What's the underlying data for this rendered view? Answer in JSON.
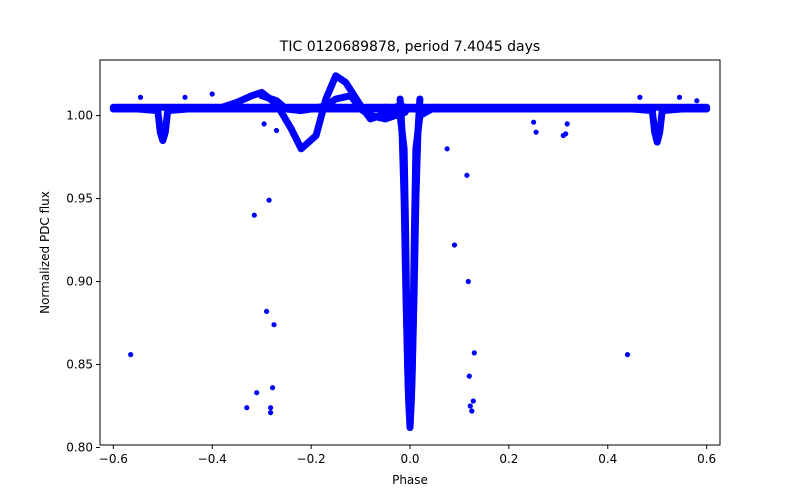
{
  "chart_data": {
    "type": "scatter",
    "title": "TIC 0120689878, period 7.4045 days",
    "xlabel": "Phase",
    "ylabel": "Normalized PDC flux",
    "xlim": [
      -0.627,
      0.627
    ],
    "ylim": [
      0.8015,
      1.0335
    ],
    "grid": false,
    "legend": "none",
    "color": "#0000ff",
    "x_ticks": [
      {
        "value": -0.6,
        "label": "−0.6"
      },
      {
        "value": -0.4,
        "label": "−0.4"
      },
      {
        "value": -0.2,
        "label": "−0.2"
      },
      {
        "value": 0.0,
        "label": "0.0"
      },
      {
        "value": 0.2,
        "label": "0.2"
      },
      {
        "value": 0.4,
        "label": "0.4"
      },
      {
        "value": 0.6,
        "label": "0.6"
      }
    ],
    "y_ticks": [
      {
        "value": 0.8,
        "label": "0.80"
      },
      {
        "value": 0.85,
        "label": "0.85"
      },
      {
        "value": 0.9,
        "label": "0.90"
      },
      {
        "value": 0.95,
        "label": "0.95"
      },
      {
        "value": 1.0,
        "label": "1.00"
      }
    ],
    "series_curves": [
      {
        "x": [
          -0.6,
          -0.55,
          -0.5,
          -0.45,
          -0.4,
          -0.35,
          -0.3,
          -0.25,
          -0.2,
          -0.15,
          -0.1,
          -0.05,
          -0.02,
          -0.015,
          -0.01,
          -0.008,
          -0.005,
          -0.003,
          0.0,
          0.003,
          0.005,
          0.008,
          0.01,
          0.015,
          0.02,
          0.05,
          0.1,
          0.15,
          0.2,
          0.25,
          0.3,
          0.35,
          0.4,
          0.45,
          0.5,
          0.55,
          0.6
        ],
        "y": [
          1.005,
          1.005,
          1.005,
          1.005,
          1.005,
          1.005,
          1.005,
          1.005,
          1.005,
          1.005,
          1.005,
          1.005,
          1.005,
          1.005,
          1.005,
          1.005,
          1.005,
          1.005,
          1.005,
          1.005,
          1.005,
          1.005,
          1.005,
          1.005,
          1.005,
          1.005,
          1.005,
          1.005,
          1.005,
          1.005,
          1.005,
          1.005,
          1.005,
          1.005,
          1.005,
          1.005,
          1.005
        ]
      },
      {
        "x": [
          -0.6,
          -0.55,
          -0.51,
          -0.505,
          -0.5,
          -0.495,
          -0.49,
          -0.45,
          -0.4,
          -0.35,
          -0.3,
          -0.25,
          -0.2,
          -0.15,
          -0.1,
          -0.05,
          0.05,
          0.1,
          0.15,
          0.2,
          0.25,
          0.3,
          0.35,
          0.4,
          0.45,
          0.49,
          0.495,
          0.5,
          0.505,
          0.51,
          0.55,
          0.6
        ],
        "y": [
          1.004,
          1.004,
          1.003,
          0.99,
          0.985,
          0.99,
          1.003,
          1.004,
          1.004,
          1.004,
          1.004,
          1.004,
          1.004,
          1.004,
          1.004,
          1.004,
          1.004,
          1.004,
          1.004,
          1.004,
          1.004,
          1.004,
          1.004,
          1.004,
          1.004,
          1.003,
          0.99,
          0.984,
          0.99,
          1.003,
          1.004,
          1.004
        ]
      },
      {
        "x": [
          -0.38,
          -0.35,
          -0.32,
          -0.3,
          -0.27,
          -0.24,
          -0.22,
          -0.19,
          -0.17,
          -0.15,
          -0.13,
          -0.1,
          -0.08,
          -0.06,
          -0.04,
          -0.02,
          -0.01
        ],
        "y": [
          1.005,
          1.008,
          1.012,
          1.014,
          1.007,
          0.992,
          0.98,
          0.988,
          1.01,
          1.024,
          1.02,
          1.006,
          0.998,
          1.0,
          1.004,
          1.006,
          1.005
        ]
      },
      {
        "x": [
          -0.3,
          -0.27,
          -0.25,
          -0.22,
          -0.2,
          -0.17,
          -0.15,
          -0.12,
          -0.1,
          -0.08,
          -0.05,
          -0.03,
          -0.01
        ],
        "y": [
          1.012,
          1.009,
          1.004,
          1.003,
          1.004,
          1.006,
          1.01,
          1.012,
          1.004,
          1.0,
          0.998,
          1.0,
          1.002
        ]
      },
      {
        "x": [
          -0.05,
          -0.02,
          -0.012,
          -0.009,
          -0.006,
          -0.003,
          0.0,
          0.003,
          0.006,
          0.009,
          0.012,
          0.02,
          0.05
        ],
        "y": [
          1.005,
          1.0,
          0.98,
          0.93,
          0.87,
          0.83,
          0.812,
          0.83,
          0.87,
          0.93,
          0.98,
          1.0,
          1.005
        ]
      },
      {
        "x": [
          -0.02,
          -0.016,
          -0.012,
          -0.008,
          -0.004,
          0.0,
          0.004,
          0.008,
          0.012,
          0.016,
          0.02
        ],
        "y": [
          1.01,
          0.99,
          0.95,
          0.89,
          0.84,
          0.815,
          0.84,
          0.89,
          0.95,
          0.99,
          1.01
        ]
      }
    ],
    "outliers": [
      {
        "x": -0.565,
        "y": 0.856
      },
      {
        "x": -0.33,
        "y": 0.824
      },
      {
        "x": -0.315,
        "y": 0.94
      },
      {
        "x": -0.31,
        "y": 0.833
      },
      {
        "x": -0.295,
        "y": 0.995
      },
      {
        "x": -0.29,
        "y": 0.882
      },
      {
        "x": -0.285,
        "y": 0.949
      },
      {
        "x": -0.282,
        "y": 0.824
      },
      {
        "x": -0.282,
        "y": 0.821
      },
      {
        "x": -0.278,
        "y": 0.836
      },
      {
        "x": -0.275,
        "y": 0.874
      },
      {
        "x": -0.27,
        "y": 0.991
      },
      {
        "x": -0.545,
        "y": 1.011
      },
      {
        "x": -0.4,
        "y": 1.013
      },
      {
        "x": -0.455,
        "y": 1.011
      },
      {
        "x": 0.075,
        "y": 0.98
      },
      {
        "x": 0.09,
        "y": 0.922
      },
      {
        "x": 0.115,
        "y": 0.964
      },
      {
        "x": 0.118,
        "y": 0.9
      },
      {
        "x": 0.12,
        "y": 0.843
      },
      {
        "x": 0.122,
        "y": 0.825
      },
      {
        "x": 0.125,
        "y": 0.822
      },
      {
        "x": 0.128,
        "y": 0.828
      },
      {
        "x": 0.13,
        "y": 0.857
      },
      {
        "x": 0.25,
        "y": 0.996
      },
      {
        "x": 0.255,
        "y": 0.99
      },
      {
        "x": 0.31,
        "y": 0.988
      },
      {
        "x": 0.315,
        "y": 0.989
      },
      {
        "x": 0.318,
        "y": 0.995
      },
      {
        "x": 0.44,
        "y": 0.856
      },
      {
        "x": 0.465,
        "y": 1.011
      },
      {
        "x": 0.545,
        "y": 1.011
      },
      {
        "x": 0.58,
        "y": 1.009
      }
    ]
  }
}
